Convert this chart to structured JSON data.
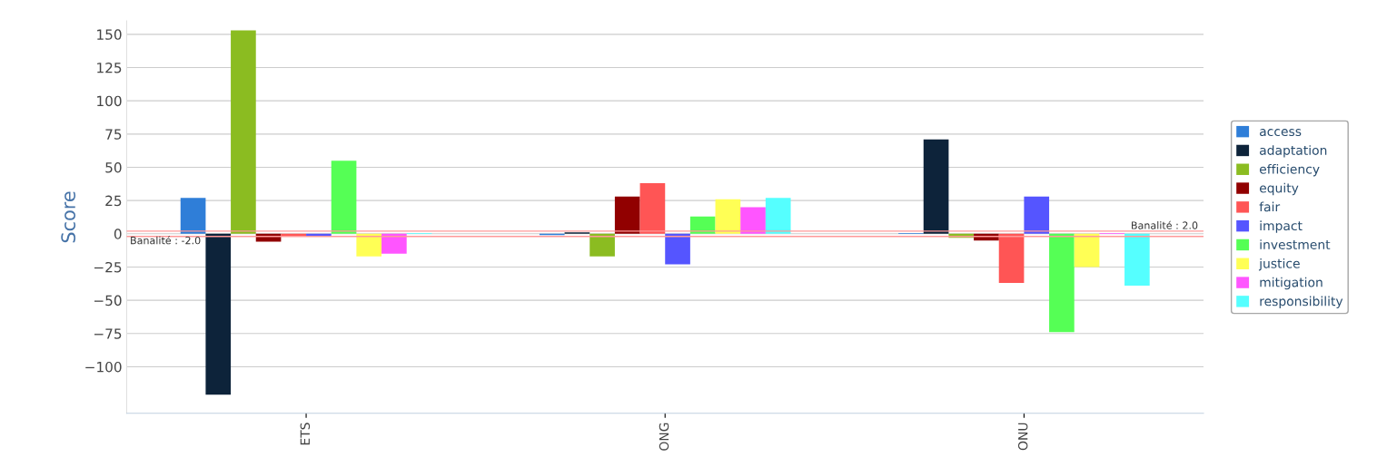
{
  "chart_data": {
    "type": "bar",
    "ylabel": "Score",
    "categories": [
      "ETS",
      "ONG",
      "ONU"
    ],
    "series": [
      {
        "name": "access",
        "color": "#2f7ed8",
        "values": [
          27,
          -1,
          0.5
        ]
      },
      {
        "name": "adaptation",
        "color": "#0d233a",
        "values": [
          -121,
          1,
          71
        ]
      },
      {
        "name": "efficiency",
        "color": "#8bbc21",
        "values": [
          153,
          -17,
          -3
        ]
      },
      {
        "name": "equity",
        "color": "#910000",
        "values": [
          -6,
          28,
          -5
        ]
      },
      {
        "name": "fair",
        "color": "#ff5555",
        "values": [
          -2,
          38,
          -37
        ]
      },
      {
        "name": "impact",
        "color": "#5555ff",
        "values": [
          -1.5,
          -23,
          28
        ]
      },
      {
        "name": "investment",
        "color": "#55ff55",
        "values": [
          55,
          13,
          -74
        ]
      },
      {
        "name": "justice",
        "color": "#ffff55",
        "values": [
          -17,
          26,
          -25
        ]
      },
      {
        "name": "mitigation",
        "color": "#ff55ff",
        "values": [
          -15,
          20,
          0.5
        ]
      },
      {
        "name": "responsibility",
        "color": "#55ffff",
        "values": [
          0.5,
          27,
          -39
        ]
      }
    ],
    "ylim": [
      -135,
      160
    ],
    "yticks": [
      {
        "value": -100,
        "label": "−100"
      },
      {
        "value": -75,
        "label": "−75"
      },
      {
        "value": -50,
        "label": "−50"
      },
      {
        "value": -25,
        "label": "−25"
      },
      0,
      25,
      50,
      75,
      100,
      125,
      150
    ],
    "ref_lines": [
      {
        "axis": "y",
        "value": 2,
        "label": "Banalité : 2.0",
        "color": "#ff9999"
      },
      {
        "axis": "y",
        "value": -2,
        "label": "Banalité : -2.0",
        "color": "#ff9999"
      }
    ],
    "grid": "y",
    "legend": "right"
  }
}
